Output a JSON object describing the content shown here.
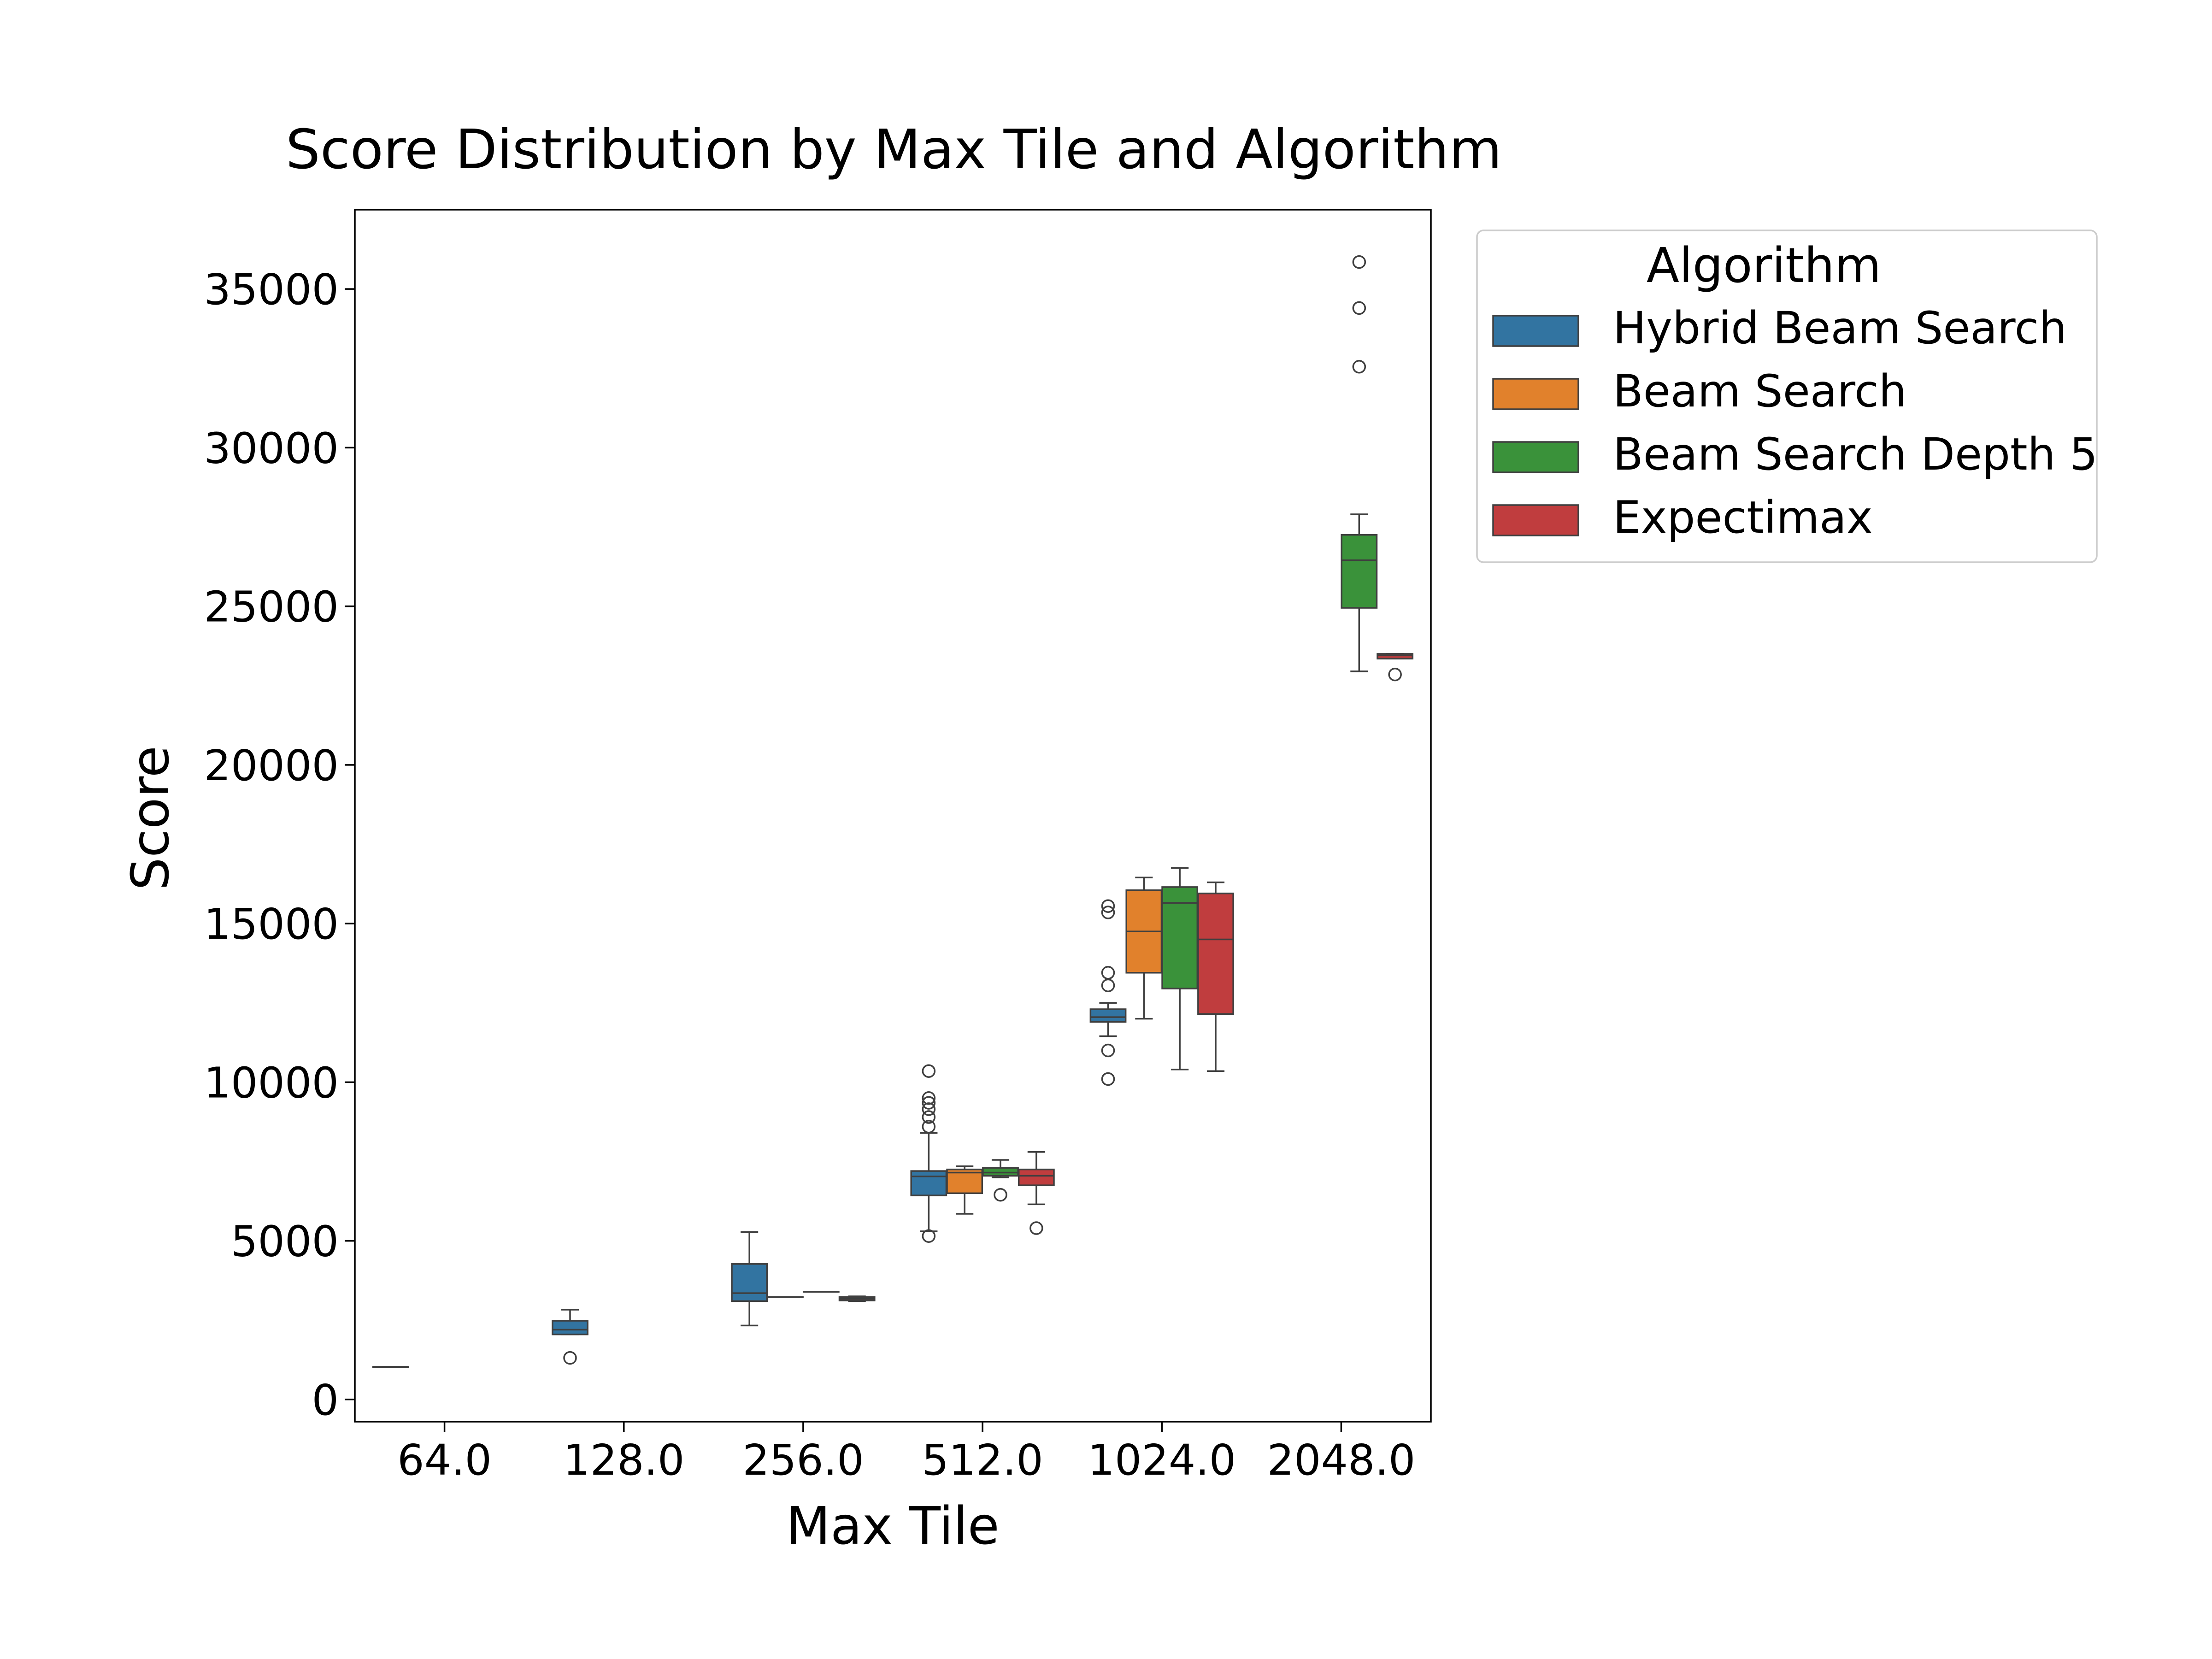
{
  "chart_data": {
    "type": "box",
    "title": "Score Distribution by Max Tile and Algorithm",
    "xlabel": "Max Tile",
    "ylabel": "Score",
    "categories": [
      "64.0",
      "128.0",
      "256.0",
      "512.0",
      "1024.0",
      "2048.0"
    ],
    "ylim": [
      -700,
      37500
    ],
    "yticks": [
      0,
      5000,
      10000,
      15000,
      20000,
      25000,
      30000,
      35000
    ],
    "grid": false,
    "legend": {
      "title": "Algorithm",
      "placement": "outside-top-right"
    },
    "series": [
      {
        "name": "Hybrid Beam Search",
        "color": "#3274a1",
        "boxes": [
          {
            "category": "64.0",
            "whislo": 1030,
            "q1": 1030,
            "med": 1030,
            "q3": 1030,
            "whishi": 1030,
            "fliers": []
          },
          {
            "category": "128.0",
            "whislo": 2050,
            "q1": 2050,
            "med": 2200,
            "q3": 2480,
            "whishi": 2830,
            "fliers": [
              1310
            ]
          },
          {
            "category": "256.0",
            "whislo": 2330,
            "q1": 3100,
            "med": 3350,
            "q3": 4270,
            "whishi": 5280,
            "fliers": []
          },
          {
            "category": "512.0",
            "whislo": 5300,
            "q1": 6430,
            "med": 7030,
            "q3": 7200,
            "whishi": 8400,
            "fliers": [
              5150,
              8600,
              8900,
              9150,
              9350,
              9500,
              10350
            ]
          },
          {
            "category": "1024.0",
            "whislo": 11450,
            "q1": 11900,
            "med": 12050,
            "q3": 12300,
            "whishi": 12500,
            "fliers": [
              10100,
              11000,
              13050,
              13450,
              15350,
              15550
            ]
          },
          {
            "category": "2048.0",
            "whislo": null,
            "q1": null,
            "med": null,
            "q3": null,
            "whishi": null,
            "fliers": []
          }
        ]
      },
      {
        "name": "Beam Search",
        "color": "#e1812c",
        "boxes": [
          {
            "category": "64.0",
            "whislo": null,
            "q1": null,
            "med": null,
            "q3": null,
            "whishi": null,
            "fliers": []
          },
          {
            "category": "128.0",
            "whislo": null,
            "q1": null,
            "med": null,
            "q3": null,
            "whishi": null,
            "fliers": []
          },
          {
            "category": "256.0",
            "whislo": 3230,
            "q1": 3230,
            "med": 3230,
            "q3": 3230,
            "whishi": 3230,
            "fliers": []
          },
          {
            "category": "512.0",
            "whislo": 5850,
            "q1": 6500,
            "med": 7150,
            "q3": 7250,
            "whishi": 7350,
            "fliers": []
          },
          {
            "category": "1024.0",
            "whislo": 12000,
            "q1": 13450,
            "med": 14750,
            "q3": 16050,
            "whishi": 16450,
            "fliers": []
          },
          {
            "category": "2048.0",
            "whislo": null,
            "q1": null,
            "med": null,
            "q3": null,
            "whishi": null,
            "fliers": []
          }
        ]
      },
      {
        "name": "Beam Search Depth 5",
        "color": "#3a923a",
        "boxes": [
          {
            "category": "64.0",
            "whislo": null,
            "q1": null,
            "med": null,
            "q3": null,
            "whishi": null,
            "fliers": []
          },
          {
            "category": "128.0",
            "whislo": null,
            "q1": null,
            "med": null,
            "q3": null,
            "whishi": null,
            "fliers": []
          },
          {
            "category": "256.0",
            "whislo": 3400,
            "q1": 3400,
            "med": 3400,
            "q3": 3400,
            "whishi": 3400,
            "fliers": []
          },
          {
            "category": "512.0",
            "whislo": 7000,
            "q1": 7050,
            "med": 7150,
            "q3": 7300,
            "whishi": 7550,
            "fliers": [
              6450
            ]
          },
          {
            "category": "1024.0",
            "whislo": 10400,
            "q1": 12950,
            "med": 15650,
            "q3": 16150,
            "whishi": 16750,
            "fliers": []
          },
          {
            "category": "2048.0",
            "whislo": 22950,
            "q1": 24950,
            "med": 26450,
            "q3": 27250,
            "whishi": 27900,
            "fliers": [
              32550,
              34400,
              35850
            ]
          }
        ]
      },
      {
        "name": "Expectimax",
        "color": "#c03d3e",
        "boxes": [
          {
            "category": "64.0",
            "whislo": null,
            "q1": null,
            "med": null,
            "q3": null,
            "whishi": null,
            "fliers": []
          },
          {
            "category": "128.0",
            "whislo": null,
            "q1": null,
            "med": null,
            "q3": null,
            "whishi": null,
            "fliers": []
          },
          {
            "category": "256.0",
            "whislo": 3100,
            "q1": 3120,
            "med": 3170,
            "q3": 3230,
            "whishi": 3250,
            "fliers": []
          },
          {
            "category": "512.0",
            "whislo": 6150,
            "q1": 6750,
            "med": 7050,
            "q3": 7250,
            "whishi": 7800,
            "fliers": [
              5400
            ]
          },
          {
            "category": "1024.0",
            "whislo": 10350,
            "q1": 12150,
            "med": 14500,
            "q3": 15950,
            "whishi": 16300,
            "fliers": []
          },
          {
            "category": "2048.0",
            "whislo": 23350,
            "q1": 23350,
            "med": 23450,
            "q3": 23500,
            "whishi": 23500,
            "fliers": [
              22850
            ]
          }
        ]
      }
    ]
  }
}
